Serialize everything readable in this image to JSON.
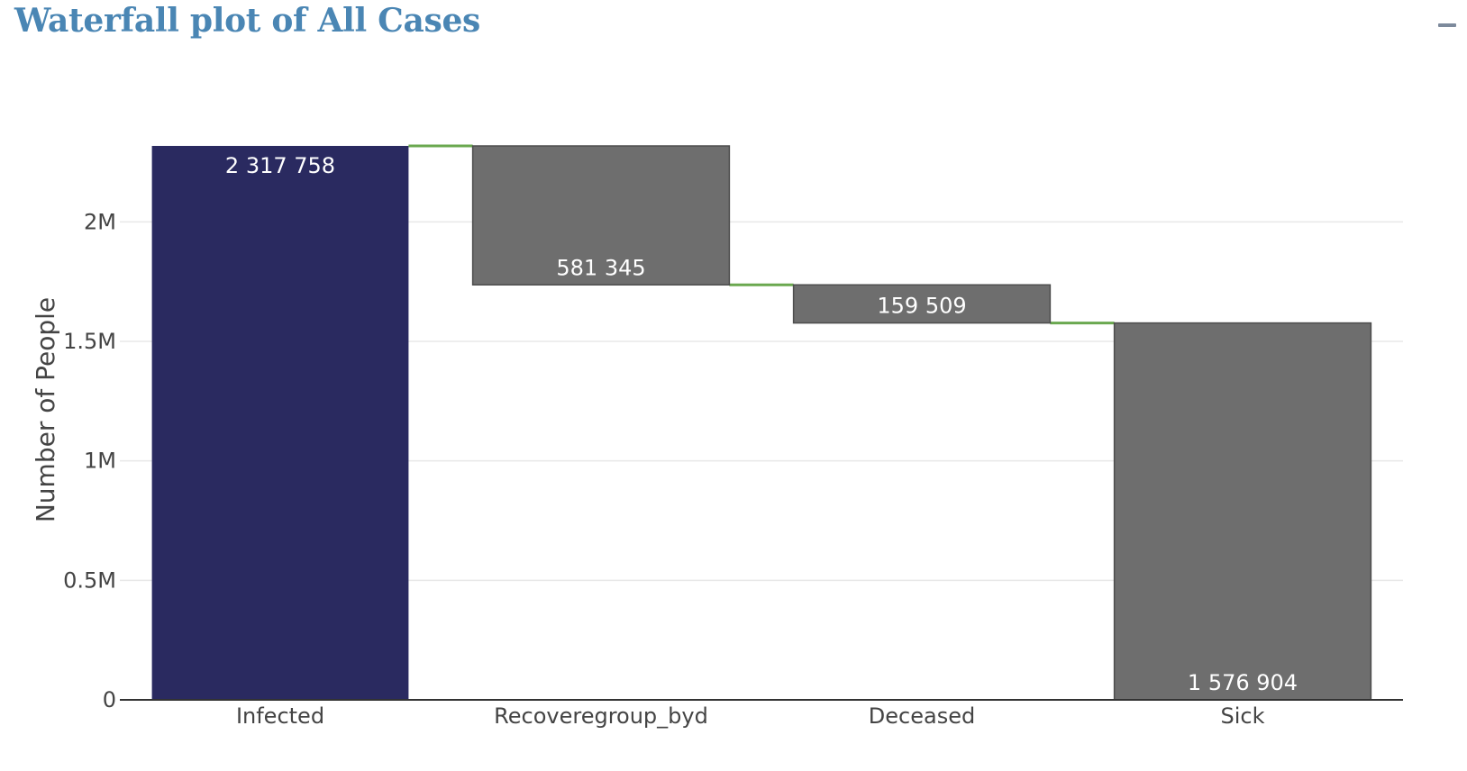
{
  "panel": {
    "title": "Waterfall plot of All Cases",
    "collapse_icon": "minus-icon"
  },
  "chart_data": {
    "type": "waterfall",
    "categories": [
      "Infected",
      "Recoveregroup_byd",
      "Deceased",
      "Sick"
    ],
    "values": [
      2317758,
      -581345,
      -159509,
      1576904
    ],
    "measures": [
      "absolute",
      "relative",
      "relative",
      "total"
    ],
    "labels": [
      "2 317 758",
      "581 345",
      "159 509",
      "1 576 904"
    ],
    "ylabel": "Number of People",
    "ylim": [
      0,
      2317758
    ],
    "yticks": [
      0,
      500000,
      1000000,
      1500000,
      2000000
    ],
    "ytick_labels": [
      "0",
      "0.5M",
      "1M",
      "1.5M",
      "2M"
    ],
    "grid": true,
    "colors": {
      "absolute": "#2a2a60",
      "relative": "#6e6e6e",
      "total": "#6e6e6e",
      "connector": "#6aa84f",
      "bar_outline": "#4d4d4d",
      "grid": "#e8e8e8",
      "axis": "#333333"
    }
  }
}
